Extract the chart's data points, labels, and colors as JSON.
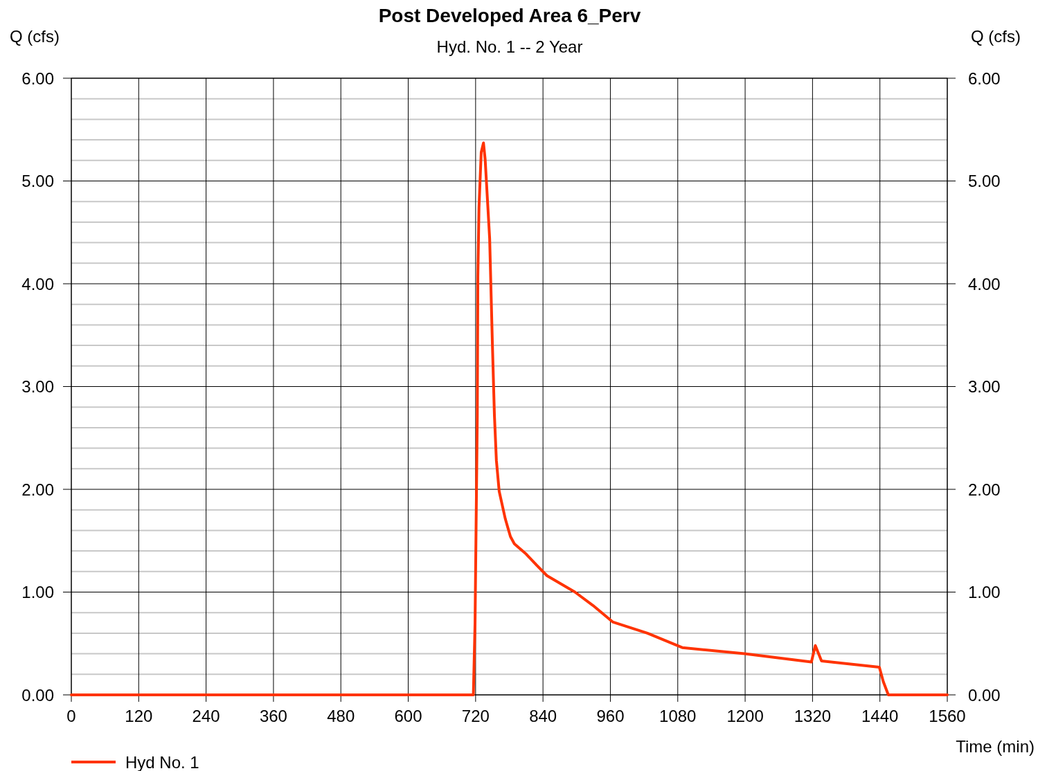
{
  "chart_data": {
    "type": "line",
    "title": "Post Developed Area 6_Perv",
    "subtitle": "Hyd. No. 1 -- 2 Year",
    "xlabel": "Time (min)",
    "ylabel": "Q (cfs)",
    "y2label": "Q (cfs)",
    "x": [
      0,
      714,
      716,
      719,
      723,
      724,
      726,
      730,
      734,
      737,
      745,
      750,
      753.5,
      757,
      762,
      773,
      782,
      789,
      810,
      829,
      847,
      897,
      929,
      964,
      1026,
      1088,
      1199,
      1318,
      1325,
      1336,
      1439,
      1446,
      1455,
      1560
    ],
    "series": [
      {
        "name": "Hyd No. 1",
        "color": "#ff3300",
        "values": [
          0,
          0,
          0,
          0.7,
          2.72,
          4.07,
          4.74,
          5.28,
          5.37,
          5.21,
          4.44,
          3.39,
          2.72,
          2.28,
          1.98,
          1.71,
          1.54,
          1.47,
          1.37,
          1.26,
          1.16,
          1.0,
          0.87,
          0.71,
          0.6,
          0.46,
          0.4,
          0.32,
          0.48,
          0.33,
          0.27,
          0.13,
          0,
          0
        ]
      }
    ],
    "xlim": [
      0,
      1560
    ],
    "xticks": [
      0,
      120,
      240,
      360,
      480,
      600,
      720,
      840,
      960,
      1080,
      1200,
      1320,
      1440,
      1560
    ],
    "ylim": [
      0,
      6
    ],
    "yticks": [
      {
        "value": 0,
        "label": "0.00"
      },
      {
        "value": 0.2,
        "label": null
      },
      {
        "value": 0.4,
        "label": null
      },
      {
        "value": 0.6,
        "label": null
      },
      {
        "value": 0.8,
        "label": null
      },
      {
        "value": 1,
        "label": "1.00"
      },
      {
        "value": 1.2,
        "label": null
      },
      {
        "value": 1.4,
        "label": null
      },
      {
        "value": 1.6,
        "label": null
      },
      {
        "value": 1.8,
        "label": null
      },
      {
        "value": 2,
        "label": "2.00"
      },
      {
        "value": 2.2,
        "label": null
      },
      {
        "value": 2.4,
        "label": null
      },
      {
        "value": 2.6,
        "label": null
      },
      {
        "value": 2.8,
        "label": null
      },
      {
        "value": 3,
        "label": "3.00"
      },
      {
        "value": 3.2,
        "label": null
      },
      {
        "value": 3.4,
        "label": null
      },
      {
        "value": 3.6,
        "label": null
      },
      {
        "value": 3.8,
        "label": null
      },
      {
        "value": 4,
        "label": "4.00"
      },
      {
        "value": 4.2,
        "label": null
      },
      {
        "value": 4.4,
        "label": null
      },
      {
        "value": 4.6,
        "label": null
      },
      {
        "value": 4.8,
        "label": null
      },
      {
        "value": 5,
        "label": "5.00"
      },
      {
        "value": 5.2,
        "label": null
      },
      {
        "value": 5.4,
        "label": null
      },
      {
        "value": 5.6,
        "label": null
      },
      {
        "value": 5.8,
        "label": null
      },
      {
        "value": 6,
        "label": "6.00"
      }
    ],
    "y2lim": [
      0,
      6
    ],
    "y2ticks": [
      {
        "value": 0,
        "label": "0.00"
      },
      {
        "value": 1,
        "label": "1.00"
      },
      {
        "value": 2,
        "label": "2.00"
      },
      {
        "value": 3,
        "label": "3.00"
      },
      {
        "value": 4,
        "label": "4.00"
      },
      {
        "value": 5,
        "label": "5.00"
      },
      {
        "value": 6,
        "label": "6.00"
      }
    ],
    "grid": true,
    "legend": "bottom left",
    "marker": "none",
    "line_style": "solid"
  }
}
